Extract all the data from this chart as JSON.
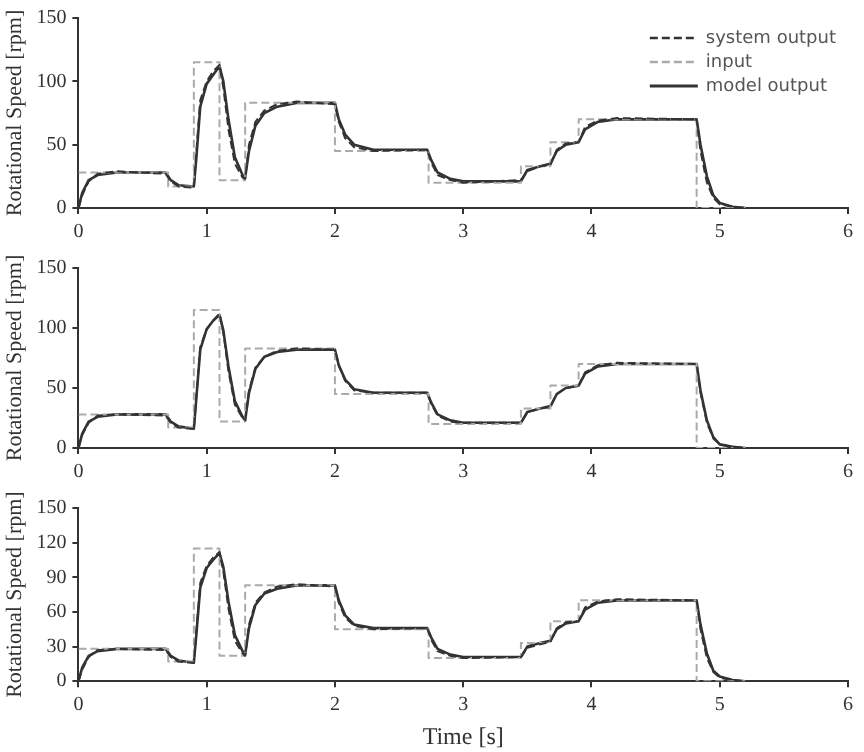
{
  "chart_data": [
    {
      "type": "line",
      "ylabel": "Rotational Speed [rpm]",
      "xlim": [
        0,
        6
      ],
      "xticks": [
        0,
        1,
        2,
        3,
        4,
        5,
        6
      ],
      "ylim": [
        0,
        150
      ],
      "yticks": [
        0,
        50,
        100,
        150
      ],
      "grid": false,
      "legend": "top right",
      "marker": "none",
      "x": [
        0,
        0.03,
        0.08,
        0.15,
        0.3,
        0.68,
        0.72,
        0.78,
        0.9,
        0.92,
        0.95,
        1.0,
        1.05,
        1.1,
        1.13,
        1.17,
        1.22,
        1.28,
        1.3,
        1.33,
        1.38,
        1.45,
        1.55,
        1.7,
        2.0,
        2.03,
        2.08,
        2.15,
        2.3,
        2.72,
        2.75,
        2.8,
        2.9,
        3.0,
        3.45,
        3.5,
        3.6,
        3.68,
        3.73,
        3.8,
        3.9,
        3.95,
        4.05,
        4.2,
        4.82,
        4.85,
        4.9,
        4.95,
        5.0,
        5.1,
        5.2
      ],
      "series": [
        {
          "name": "system output",
          "color": "#333333",
          "line_style": "dashed",
          "values": [
            0,
            10,
            21,
            27,
            29,
            27,
            21,
            17,
            16,
            45,
            85,
            100,
            108,
            113,
            95,
            62,
            35,
            24,
            23,
            50,
            68,
            77,
            82,
            84,
            82,
            68,
            55,
            48,
            45,
            46,
            36,
            26,
            22,
            20,
            22,
            29,
            33,
            34,
            46,
            51,
            52,
            64,
            69,
            71,
            70,
            45,
            20,
            8,
            3,
            1,
            0
          ]
        },
        {
          "name": "input",
          "color": "#aaaaaa",
          "line_style": "dashed",
          "x": [
            0,
            0.7,
            0.7,
            0.9,
            0.9,
            1.1,
            1.1,
            1.3,
            1.3,
            2.0,
            2.0,
            2.73,
            2.73,
            3.45,
            3.45,
            3.68,
            3.68,
            3.9,
            3.9,
            4.82,
            4.82,
            5.2
          ],
          "values": [
            28,
            28,
            17,
            17,
            115,
            115,
            22,
            22,
            83,
            83,
            45,
            45,
            20,
            20,
            33,
            33,
            52,
            52,
            70,
            70,
            0,
            0
          ]
        },
        {
          "name": "model output",
          "color": "#333333",
          "line_style": "solid",
          "values": [
            0,
            12,
            22,
            26,
            28,
            28,
            22,
            18,
            17,
            40,
            80,
            98,
            105,
            112,
            100,
            70,
            40,
            26,
            24,
            45,
            65,
            75,
            80,
            83,
            83,
            70,
            58,
            50,
            46,
            46,
            38,
            28,
            23,
            21,
            21,
            30,
            33,
            35,
            45,
            50,
            52,
            62,
            68,
            70,
            70,
            50,
            25,
            10,
            4,
            1,
            0
          ]
        }
      ]
    },
    {
      "type": "line",
      "ylabel": "Rotational Speed [rpm]",
      "xlim": [
        0,
        6
      ],
      "xticks": [
        0,
        1,
        2,
        3,
        4,
        5,
        6
      ],
      "ylim": [
        0,
        150
      ],
      "yticks": [
        0,
        50,
        100,
        150
      ],
      "grid": false,
      "marker": "none",
      "x": [
        0,
        0.03,
        0.08,
        0.15,
        0.3,
        0.68,
        0.72,
        0.78,
        0.9,
        0.92,
        0.95,
        1.0,
        1.05,
        1.1,
        1.13,
        1.17,
        1.22,
        1.28,
        1.3,
        1.33,
        1.38,
        1.45,
        1.55,
        1.7,
        2.0,
        2.03,
        2.08,
        2.15,
        2.3,
        2.72,
        2.75,
        2.8,
        2.9,
        3.0,
        3.45,
        3.5,
        3.6,
        3.68,
        3.73,
        3.8,
        3.9,
        3.95,
        4.05,
        4.2,
        4.82,
        4.85,
        4.9,
        4.95,
        5.0,
        5.1,
        5.2
      ],
      "series": [
        {
          "color": "#333333",
          "line_style": "dashed",
          "values": [
            0,
            11,
            21,
            27,
            28,
            27,
            21,
            17,
            16,
            44,
            84,
            99,
            106,
            112,
            96,
            64,
            36,
            25,
            23,
            48,
            67,
            76,
            81,
            83,
            82,
            69,
            56,
            48,
            46,
            46,
            37,
            27,
            22,
            21,
            21,
            30,
            33,
            34,
            45,
            50,
            52,
            63,
            69,
            71,
            70,
            46,
            21,
            8,
            3,
            1,
            0
          ]
        },
        {
          "color": "#aaaaaa",
          "line_style": "dashed",
          "x": [
            0,
            0.7,
            0.7,
            0.9,
            0.9,
            1.1,
            1.1,
            1.3,
            1.3,
            2.0,
            2.0,
            2.73,
            2.73,
            3.45,
            3.45,
            3.68,
            3.68,
            3.9,
            3.9,
            4.82,
            4.82,
            5.2
          ],
          "values": [
            28,
            28,
            17,
            17,
            115,
            115,
            22,
            22,
            83,
            83,
            45,
            45,
            20,
            20,
            33,
            33,
            52,
            52,
            70,
            70,
            0,
            0
          ]
        },
        {
          "color": "#333333",
          "line_style": "solid",
          "values": [
            0,
            12,
            22,
            26,
            28,
            28,
            22,
            18,
            16,
            42,
            82,
            99,
            106,
            111,
            98,
            68,
            39,
            26,
            23,
            46,
            66,
            76,
            80,
            82,
            82,
            69,
            57,
            49,
            46,
            46,
            38,
            28,
            23,
            21,
            21,
            30,
            33,
            35,
            45,
            50,
            52,
            62,
            68,
            70,
            70,
            48,
            23,
            9,
            3,
            1,
            0
          ]
        }
      ]
    },
    {
      "type": "line",
      "xlabel": "Time [s]",
      "ylabel": "Rotational Speed [rpm]",
      "xlim": [
        0,
        6
      ],
      "xticks": [
        0,
        1,
        2,
        3,
        4,
        5,
        6
      ],
      "ylim": [
        0,
        150
      ],
      "yticks": [
        0,
        30,
        60,
        90,
        120,
        150
      ],
      "grid": false,
      "marker": "none",
      "x": [
        0,
        0.03,
        0.08,
        0.15,
        0.3,
        0.68,
        0.72,
        0.78,
        0.9,
        0.92,
        0.95,
        1.0,
        1.05,
        1.1,
        1.13,
        1.17,
        1.22,
        1.28,
        1.3,
        1.33,
        1.38,
        1.45,
        1.55,
        1.7,
        2.0,
        2.03,
        2.08,
        2.15,
        2.3,
        2.72,
        2.75,
        2.8,
        2.9,
        3.0,
        3.45,
        3.5,
        3.6,
        3.68,
        3.73,
        3.8,
        3.9,
        3.95,
        4.05,
        4.2,
        4.82,
        4.85,
        4.9,
        4.95,
        5.0,
        5.1,
        5.2
      ],
      "series": [
        {
          "color": "#333333",
          "line_style": "dashed",
          "values": [
            0,
            10,
            21,
            27,
            28,
            27,
            21,
            17,
            16,
            44,
            85,
            100,
            107,
            112,
            95,
            63,
            35,
            24,
            22,
            49,
            68,
            77,
            82,
            84,
            82,
            68,
            55,
            48,
            45,
            46,
            36,
            26,
            22,
            20,
            21,
            29,
            32,
            34,
            46,
            51,
            52,
            64,
            69,
            71,
            70,
            45,
            20,
            8,
            3,
            1,
            0
          ]
        },
        {
          "color": "#aaaaaa",
          "line_style": "dashed",
          "x": [
            0,
            0.7,
            0.7,
            0.9,
            0.9,
            1.1,
            1.1,
            1.3,
            1.3,
            2.0,
            2.0,
            2.73,
            2.73,
            3.45,
            3.45,
            3.68,
            3.68,
            3.9,
            3.9,
            4.82,
            4.82,
            5.2
          ],
          "values": [
            28,
            28,
            17,
            17,
            115,
            115,
            22,
            22,
            83,
            83,
            45,
            45,
            20,
            20,
            33,
            33,
            52,
            52,
            70,
            70,
            0,
            0
          ]
        },
        {
          "color": "#333333",
          "line_style": "solid",
          "values": [
            0,
            12,
            22,
            26,
            28,
            28,
            22,
            18,
            16,
            41,
            81,
            98,
            105,
            111,
            99,
            69,
            40,
            26,
            23,
            46,
            66,
            76,
            80,
            83,
            83,
            70,
            57,
            49,
            46,
            46,
            38,
            28,
            23,
            21,
            21,
            30,
            33,
            35,
            45,
            50,
            52,
            62,
            68,
            70,
            70,
            49,
            24,
            9,
            4,
            1,
            0
          ]
        }
      ]
    }
  ]
}
